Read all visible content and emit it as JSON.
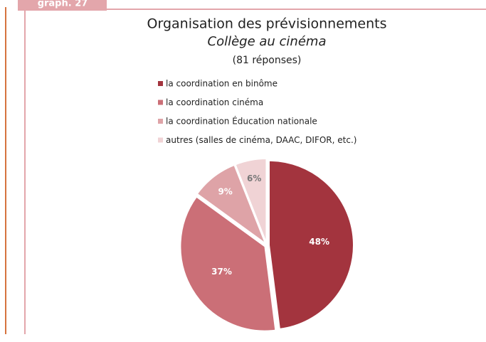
{
  "figure_label": "graph. 27",
  "chart_data": {
    "type": "pie",
    "title": "Organisation des prévisionnements",
    "subtitle": "Collège au cinéma",
    "note": "(81 réponses)",
    "categories": [
      "la coordination en binôme",
      "la coordination cinéma",
      "la coordination Éducation nationale",
      "autres (salles de cinéma, DAAC, DIFOR, etc.)"
    ],
    "values": [
      48,
      37,
      9,
      6
    ],
    "value_labels": [
      "48%",
      "37%",
      "9%",
      "6%"
    ],
    "colors": [
      "#a3343e",
      "#cb6f77",
      "#dea3a7",
      "#f0d3d5"
    ]
  }
}
